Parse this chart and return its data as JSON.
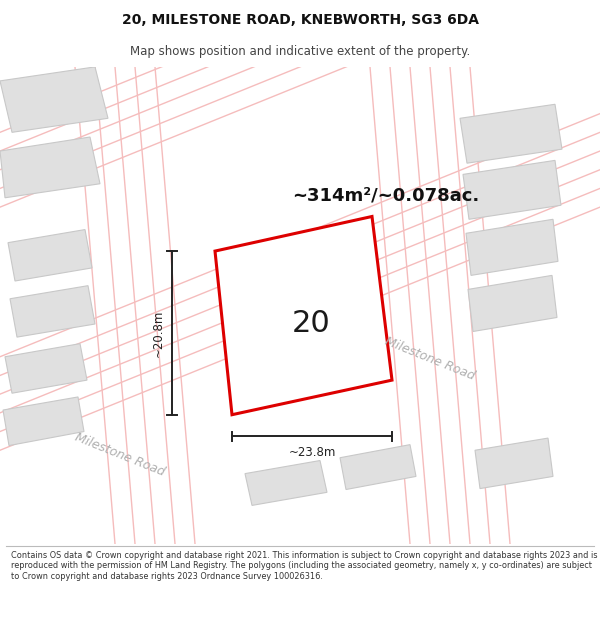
{
  "title_line1": "20, MILESTONE ROAD, KNEBWORTH, SG3 6DA",
  "title_line2": "Map shows position and indicative extent of the property.",
  "area_text": "~314m²/~0.078ac.",
  "number_label": "20",
  "width_label": "~23.8m",
  "height_label": "~20.8m",
  "road_label1": "Milestone Road",
  "road_label2": "Milestone Road",
  "footer_text": "Contains OS data © Crown copyright and database right 2021. This information is subject to Crown copyright and database rights 2023 and is reproduced with the permission of HM Land Registry. The polygons (including the associated geometry, namely x, y co-ordinates) are subject to Crown copyright and database rights 2023 Ordnance Survey 100026316.",
  "map_bg": "#f2f2f2",
  "red_color": "#dd0000",
  "road_color": "#f5bcbc",
  "dim_color": "#222222",
  "bldg_fill": "#e0e0e0",
  "bldg_edge": "#c8c8c8",
  "prop_fill": "#ffffff",
  "inner_fill": "#d8d8d8",
  "inner_edge": "#c0c0c0",
  "road_text_color": "#b0b0b0",
  "title_color": "#111111",
  "footer_color": "#333333"
}
